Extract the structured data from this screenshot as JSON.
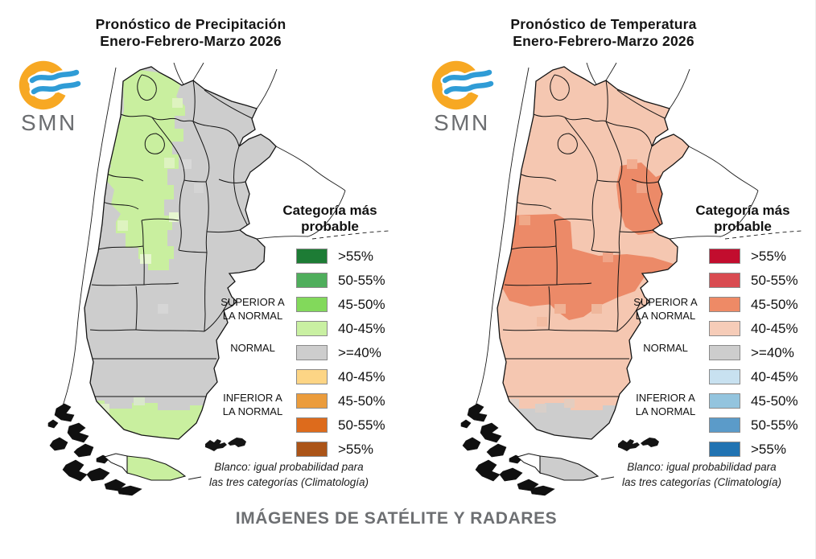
{
  "page": {
    "background": "#ffffff",
    "footer_heading": "IMÁGENES DE SATÉLITE Y RADARES"
  },
  "logo": {
    "text": "SMN",
    "arc_color": "#F7A823",
    "wave_color": "#2F9CD6",
    "text_color": "#6b6d70"
  },
  "maps": [
    {
      "id": "precipitation",
      "title_line1": "Pronóstico de Precipitación",
      "title_line2": "Enero-Febrero-Marzo 2026",
      "legend": {
        "title_line1": "Categoría más",
        "title_line2": "probable",
        "rows": [
          {
            "label": ">55%",
            "color": "#1d7c35"
          },
          {
            "label": "50-55%",
            "color": "#4fae5c"
          },
          {
            "label": "45-50%",
            "color": "#82d95b"
          },
          {
            "label": "40-45%",
            "color": "#c9f0a2"
          },
          {
            "label": ">=40%",
            "color": "#cdcdcd"
          },
          {
            "label": "40-45%",
            "color": "#fdd585"
          },
          {
            "label": "45-50%",
            "color": "#eb9c3c"
          },
          {
            "label": "50-55%",
            "color": "#dd6b1c"
          },
          {
            "label": ">55%",
            "color": "#ab5418"
          }
        ],
        "groups": [
          {
            "line1": "SUPERIOR A",
            "line2": "LA NORMAL"
          },
          {
            "line1": "NORMAL",
            "line2": ""
          },
          {
            "line1": "INFERIOR A",
            "line2": "LA NORMAL"
          }
        ],
        "note_line1": "Blanco: igual probabilidad para",
        "note_line2": "las tres categorías (Climatología)"
      },
      "map_fill": {
        "base": "#cdcdcd",
        "base_category": ">=40% normal",
        "regions": [
          {
            "name": "northwest",
            "category": "40-45% superior a la normal",
            "color": "#c9ef9f"
          },
          {
            "name": "south-santa-cruz",
            "category": "40-45% superior a la normal",
            "color": "#c9ef9f"
          },
          {
            "name": "tierra-del-fuego",
            "category": "40-45% superior a la normal",
            "color": "#c9ef9f"
          }
        ]
      }
    },
    {
      "id": "temperature",
      "title_line1": "Pronóstico de Temperatura",
      "title_line2": "Enero-Febrero-Marzo 2026",
      "legend": {
        "title_line1": "Categoría más",
        "title_line2": "probable",
        "rows": [
          {
            "label": ">55%",
            "color": "#c20d2e"
          },
          {
            "label": "50-55%",
            "color": "#d94b51"
          },
          {
            "label": "45-50%",
            "color": "#ee8a66"
          },
          {
            "label": "40-45%",
            "color": "#f6ccb8"
          },
          {
            "label": ">=40%",
            "color": "#cdcdcd"
          },
          {
            "label": "40-45%",
            "color": "#c8e1f0"
          },
          {
            "label": "45-50%",
            "color": "#93c4de"
          },
          {
            "label": "50-55%",
            "color": "#5b9bc9"
          },
          {
            "label": ">55%",
            "color": "#2173b2"
          }
        ],
        "groups": [
          {
            "line1": "SUPERIOR A",
            "line2": "LA NORMAL"
          },
          {
            "line1": "NORMAL",
            "line2": ""
          },
          {
            "line1": "INFERIOR A",
            "line2": "LA NORMAL"
          }
        ],
        "note_line1": "Blanco: igual probabilidad para",
        "note_line2": "las tres categorías (Climatología)"
      },
      "map_fill": {
        "base": "#f5c7b1",
        "base_category": "40-45% superior a la normal",
        "regions": [
          {
            "name": "west-cuyo",
            "category": "45-50% superior a la normal",
            "color": "#ec8a68"
          },
          {
            "name": "central-south",
            "category": "45-50% superior a la normal",
            "color": "#ec8a68"
          },
          {
            "name": "east-mesopotamia",
            "category": "45-50% superior a la normal",
            "color": "#ec8a68"
          },
          {
            "name": "south-santa-cruz",
            "category": ">=40% normal",
            "color": "#cdcdcd"
          },
          {
            "name": "tierra-del-fuego",
            "category": ">=40% normal",
            "color": "#cdcdcd"
          }
        ]
      }
    }
  ]
}
